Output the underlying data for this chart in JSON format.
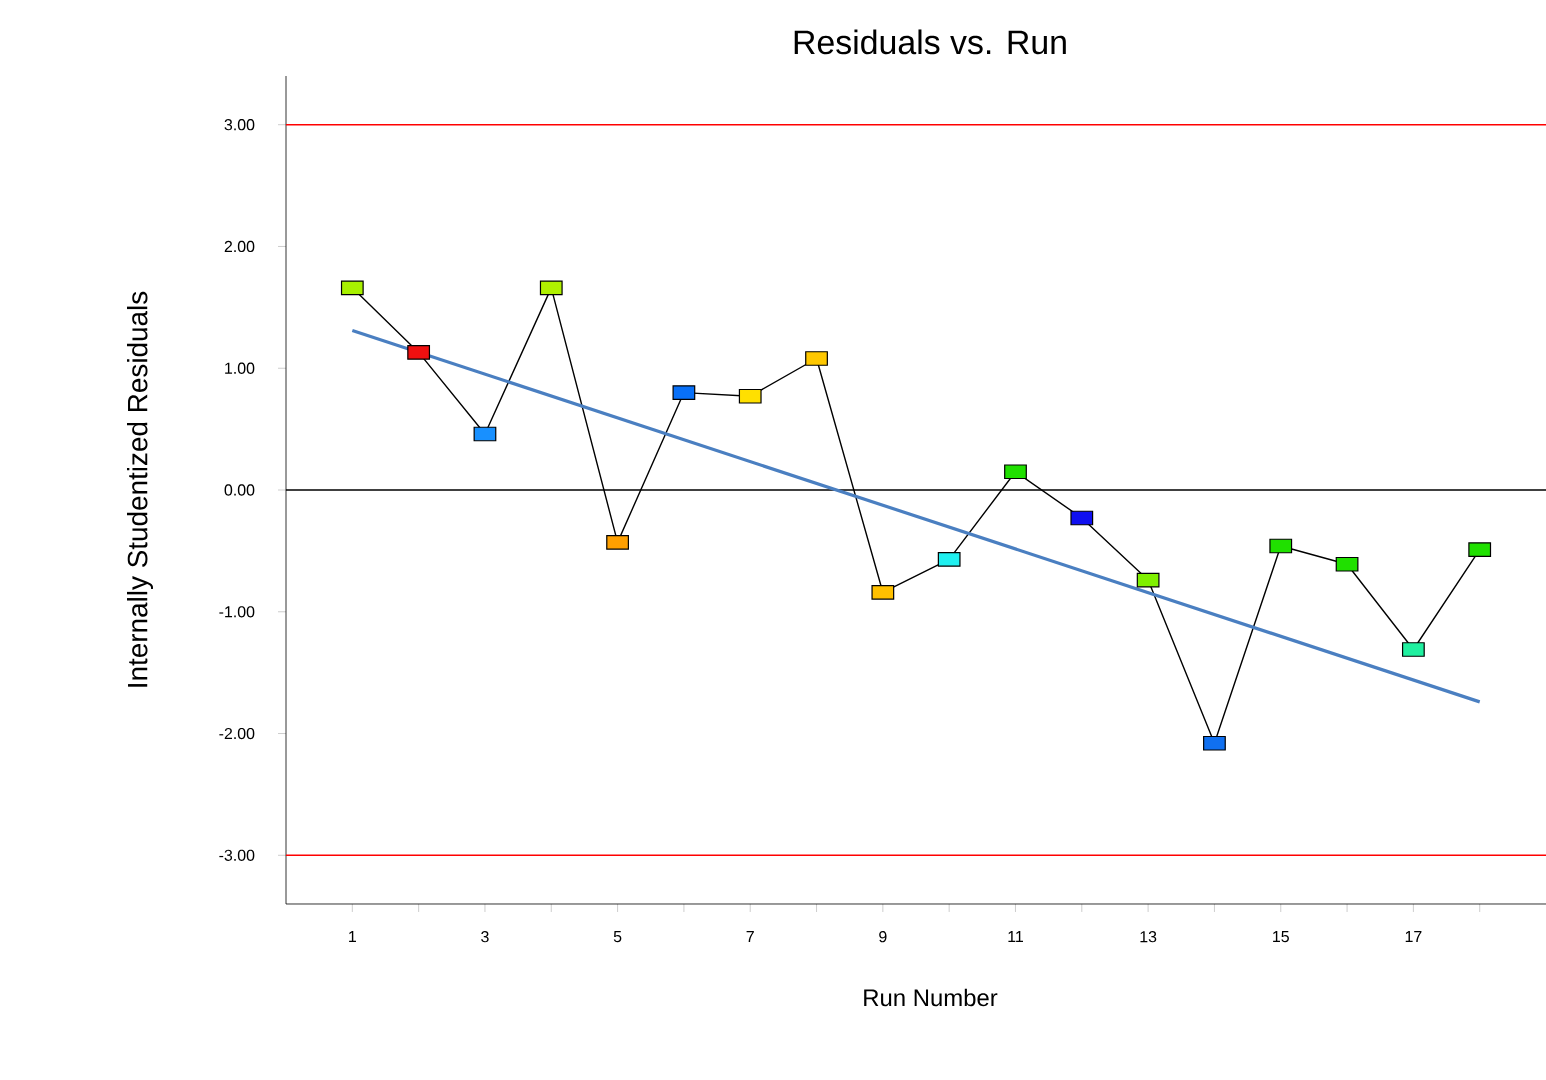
{
  "chart_data": {
    "type": "line",
    "title": "Residuals vs. Run",
    "xlabel": "Run Number",
    "ylabel": "Internally Studentized Residuals",
    "x": [
      1,
      2,
      3,
      4,
      5,
      6,
      7,
      8,
      9,
      10,
      11,
      12,
      13,
      14,
      15,
      16,
      17,
      18
    ],
    "series": [
      {
        "color": "#000000",
        "marker": "square",
        "colors": [
          "#a8f000",
          "#f01010",
          "#1890ff",
          "#b0f000",
          "#ffa000",
          "#0870f8",
          "#ffe000",
          "#ffc800",
          "#ffc000",
          "#20f0f0",
          "#20e000",
          "#1010f0",
          "#80f000",
          "#1070f0",
          "#20e000",
          "#20e000",
          "#20f0a0",
          "#20e000"
        ],
        "values": [
          1.66,
          1.13,
          0.46,
          1.66,
          -0.43,
          0.8,
          0.77,
          1.08,
          -0.84,
          -0.57,
          0.15,
          -0.23,
          -0.74,
          -2.08,
          -0.46,
          -0.61,
          -1.31,
          -0.49
        ]
      },
      {
        "type": "line",
        "x": [
          1,
          18
        ],
        "color": "#4a7fc1",
        "marker": "none",
        "values": [
          1.31,
          -1.74
        ]
      }
    ],
    "xlim": [
      0,
      19
    ],
    "ylim": [
      -3.4,
      3.4
    ],
    "xticks": [
      1,
      {
        "value": 2,
        "label": null
      },
      3,
      {
        "value": 4,
        "label": null
      },
      5,
      {
        "value": 6,
        "label": null
      },
      7,
      {
        "value": 8,
        "label": null
      },
      9,
      {
        "value": 10,
        "label": null
      },
      11,
      {
        "value": 12,
        "label": null
      },
      13,
      {
        "value": 14,
        "label": null
      },
      15,
      {
        "value": 16,
        "label": null
      },
      17,
      {
        "value": 18,
        "label": null
      }
    ],
    "yticks": [
      {
        "value": 3,
        "label": "3.00"
      },
      {
        "value": 2,
        "label": "2.00"
      },
      {
        "value": 1,
        "label": "1.00"
      },
      {
        "value": 0,
        "label": "0.00"
      },
      {
        "value": -1,
        "label": "-1.00"
      },
      {
        "value": -2,
        "label": "-2.00"
      },
      {
        "value": -3,
        "label": "-3.00"
      }
    ],
    "ref_lines": [
      {
        "axis": "y",
        "value": 3,
        "color": "#ff0000"
      },
      {
        "axis": "y",
        "value": 0,
        "color": "#000000"
      },
      {
        "axis": "y",
        "value": -3,
        "color": "#ff0000"
      }
    ],
    "grid": false
  }
}
